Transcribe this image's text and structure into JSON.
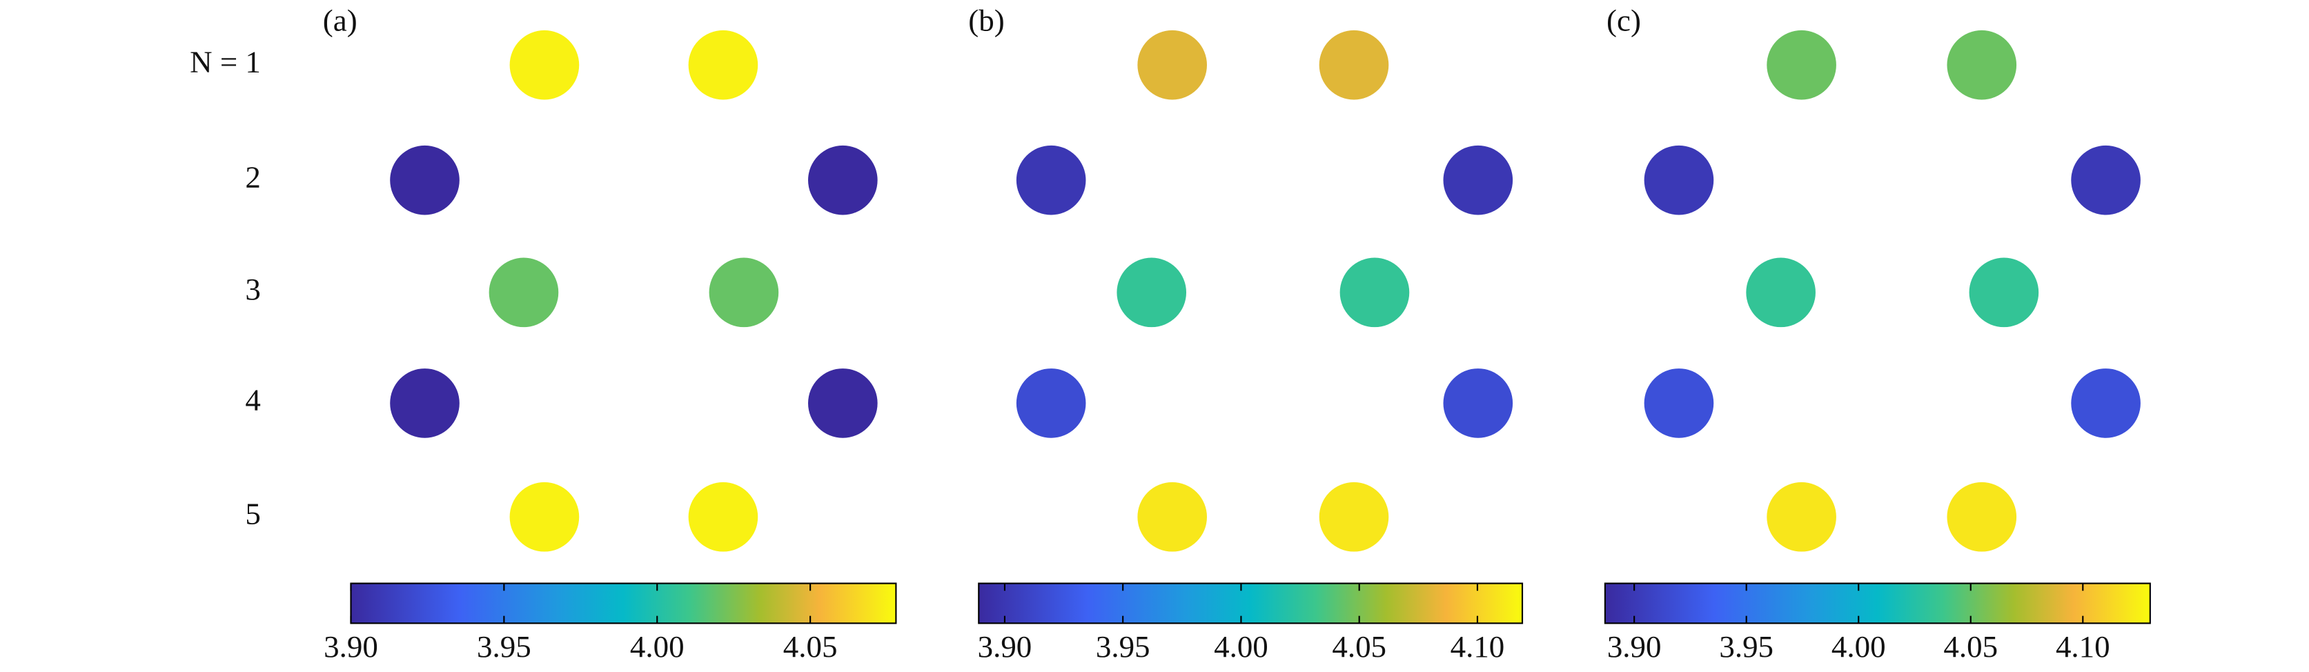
{
  "chart_data": [
    {
      "type": "scatter",
      "panel_label": "(a)",
      "colormap": "parula",
      "row_labels": [
        "N = 1",
        "2",
        "3",
        "4",
        "5"
      ],
      "values": [
        [
          4.075,
          4.075
        ],
        [
          3.9,
          3.9
        ],
        [
          4.02,
          4.02
        ],
        [
          3.9,
          3.9
        ],
        [
          4.075,
          4.075
        ]
      ],
      "clim": [
        3.9,
        4.078
      ],
      "cticks": [
        {
          "value": 3.9,
          "label": "3.90"
        },
        {
          "value": 3.95,
          "label": "3.95"
        },
        {
          "value": 4.0,
          "label": "4.00"
        },
        {
          "value": 4.05,
          "label": "4.05"
        }
      ]
    },
    {
      "type": "scatter",
      "panel_label": "(b)",
      "colormap": "parula",
      "values": [
        [
          4.08,
          4.08
        ],
        [
          3.9,
          3.9
        ],
        [
          4.027,
          4.027
        ],
        [
          3.917,
          3.917
        ],
        [
          4.11,
          4.11
        ]
      ],
      "clim": [
        3.889,
        4.119
      ],
      "cticks": [
        {
          "value": 3.9,
          "label": "3.90"
        },
        {
          "value": 3.95,
          "label": "3.95"
        },
        {
          "value": 4.0,
          "label": "4.00"
        },
        {
          "value": 4.05,
          "label": "4.05"
        },
        {
          "value": 4.1,
          "label": "4.10"
        }
      ]
    },
    {
      "type": "scatter",
      "panel_label": "(c)",
      "colormap": "parula",
      "values": [
        [
          4.052,
          4.052
        ],
        [
          3.9,
          3.9
        ],
        [
          4.033,
          4.033
        ],
        [
          3.92,
          3.92
        ],
        [
          4.12,
          4.12
        ]
      ],
      "clim": [
        3.887,
        4.13
      ],
      "cticks": [
        {
          "value": 3.9,
          "label": "3.90"
        },
        {
          "value": 3.95,
          "label": "3.95"
        },
        {
          "value": 4.0,
          "label": "4.00"
        },
        {
          "value": 4.05,
          "label": "4.05"
        },
        {
          "value": 4.1,
          "label": "4.10"
        }
      ]
    }
  ]
}
